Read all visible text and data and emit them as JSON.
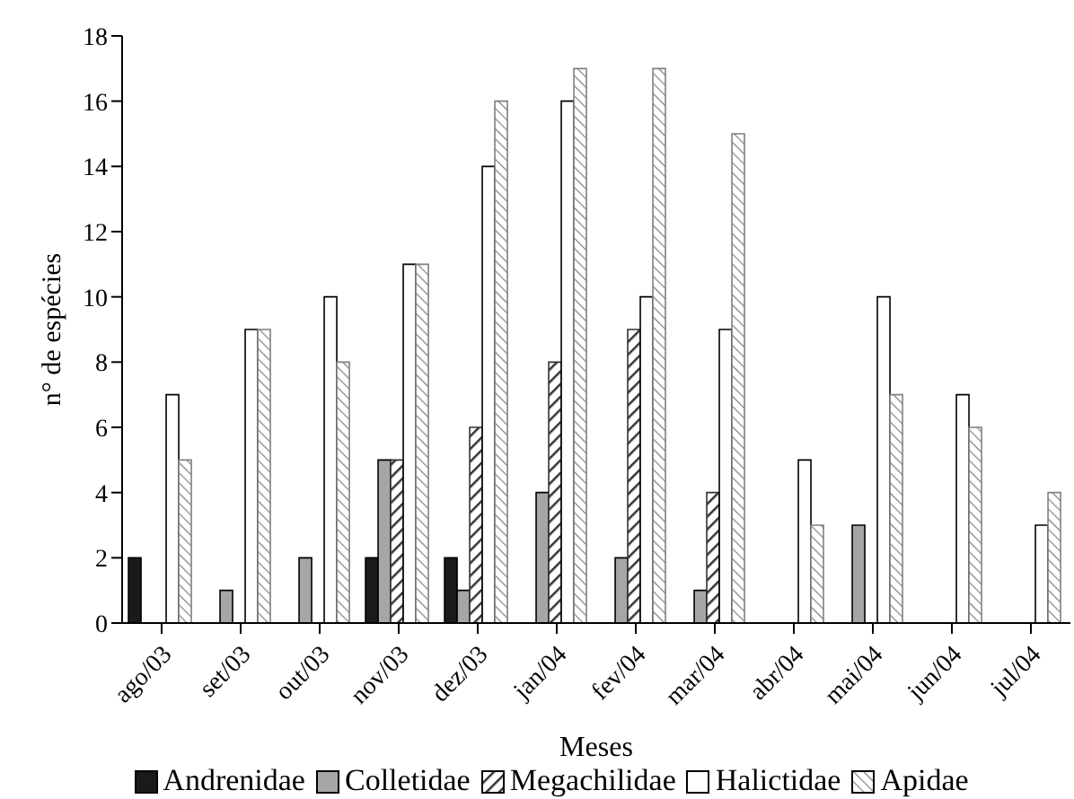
{
  "chart_data": {
    "type": "bar",
    "xlabel": "Meses",
    "ylabel": "n° de espécies",
    "categories": [
      "ago/03",
      "set/03",
      "out/03",
      "nov/03",
      "dez/03",
      "jan/04",
      "fev/04",
      "mar/04",
      "abr/04",
      "mai/04",
      "jun/04",
      "jul/04"
    ],
    "series": [
      {
        "name": "Andrenidae",
        "color": "#1a1a1a",
        "values": [
          2,
          0,
          0,
          2,
          2,
          0,
          0,
          0,
          0,
          0,
          0,
          0
        ]
      },
      {
        "name": "Colletidae",
        "color": "#a6a6a6",
        "values": [
          0,
          1,
          2,
          5,
          1,
          4,
          2,
          1,
          0,
          3,
          0,
          0
        ]
      },
      {
        "name": "Megachilidae",
        "color": "#333333",
        "values": [
          0,
          0,
          0,
          5,
          6,
          8,
          9,
          4,
          0,
          0,
          0,
          0
        ]
      },
      {
        "name": "Halictidae",
        "color": "#ffffff",
        "values": [
          7,
          9,
          10,
          11,
          14,
          16,
          10,
          9,
          5,
          10,
          7,
          3
        ]
      },
      {
        "name": "Apidae",
        "color": "#808080",
        "values": [
          5,
          9,
          8,
          11,
          16,
          17,
          17,
          15,
          3,
          7,
          6,
          4
        ]
      }
    ],
    "ylim": [
      0,
      18
    ],
    "yticks": [
      0,
      2,
      4,
      6,
      8,
      10,
      12,
      14,
      16,
      18
    ],
    "grid": false,
    "legend": "bottom"
  }
}
